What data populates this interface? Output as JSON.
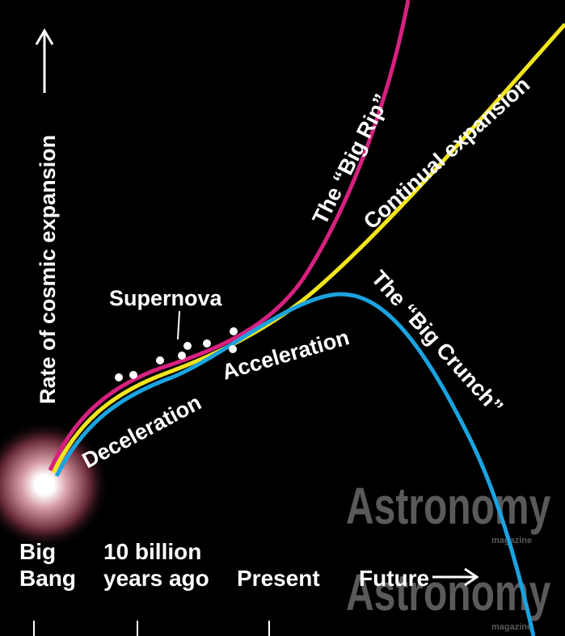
{
  "axis_label": "Rate of cosmic expansion",
  "labels": {
    "supernova": "Supernova",
    "deceleration": "Deceleration",
    "acceleration": "Acceleration",
    "big_rip": "The “Big Rip”",
    "continual": "Continual expansion",
    "big_crunch": "The “Big Crunch”"
  },
  "timeline": [
    {
      "lines": [
        "Big",
        "Bang"
      ]
    },
    {
      "lines": [
        "10 billion",
        "years ago"
      ]
    },
    {
      "lines": [
        "Present"
      ]
    },
    {
      "lines": [
        "Future"
      ]
    }
  ],
  "watermarks": [
    {
      "title": "Astronomy",
      "subtitle": "magazine"
    },
    {
      "title": "Astronomy",
      "subtitle": "magazine"
    }
  ]
}
